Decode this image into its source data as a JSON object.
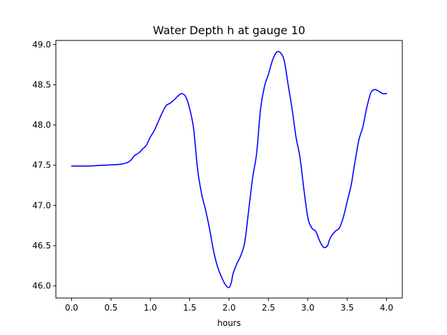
{
  "chart_data": {
    "type": "line",
    "title": "Water Depth h at gauge 10",
    "xlabel": "hours",
    "ylabel": "",
    "xlim": [
      -0.2,
      4.2
    ],
    "ylim": [
      45.85,
      49.05
    ],
    "grid": false,
    "xticks": [
      0.0,
      0.5,
      1.0,
      1.5,
      2.0,
      2.5,
      3.0,
      3.5,
      4.0
    ],
    "xtick_labels": [
      "0.0",
      "0.5",
      "1.0",
      "1.5",
      "2.0",
      "2.5",
      "3.0",
      "3.5",
      "4.0"
    ],
    "yticks": [
      46.0,
      46.5,
      47.0,
      47.5,
      48.0,
      48.5,
      49.0
    ],
    "ytick_labels": [
      "46.0",
      "46.5",
      "47.0",
      "47.5",
      "48.0",
      "48.5",
      "49.0"
    ],
    "series": [
      {
        "name": "",
        "color": "#0000ff",
        "x": [
          0.0,
          0.2,
          0.4,
          0.6,
          0.7,
          0.75,
          0.8,
          0.85,
          0.9,
          0.95,
          1.0,
          1.05,
          1.1,
          1.15,
          1.2,
          1.25,
          1.3,
          1.35,
          1.4,
          1.45,
          1.5,
          1.55,
          1.6,
          1.65,
          1.7,
          1.75,
          1.8,
          1.85,
          1.9,
          1.95,
          2.0,
          2.03,
          2.05,
          2.1,
          2.15,
          2.2,
          2.25,
          2.3,
          2.35,
          2.4,
          2.45,
          2.5,
          2.55,
          2.6,
          2.65,
          2.7,
          2.75,
          2.8,
          2.85,
          2.9,
          2.95,
          3.0,
          3.05,
          3.1,
          3.15,
          3.2,
          3.25,
          3.27,
          3.3,
          3.35,
          3.4,
          3.45,
          3.5,
          3.55,
          3.6,
          3.65,
          3.7,
          3.75,
          3.8,
          3.85,
          3.9,
          3.95,
          4.0
        ],
        "y": [
          47.49,
          47.49,
          47.5,
          47.51,
          47.53,
          47.56,
          47.62,
          47.65,
          47.7,
          47.75,
          47.85,
          47.93,
          48.04,
          48.15,
          48.24,
          48.27,
          48.31,
          48.36,
          48.39,
          48.35,
          48.2,
          47.95,
          47.45,
          47.15,
          46.95,
          46.72,
          46.45,
          46.25,
          46.12,
          46.02,
          45.98,
          46.05,
          46.15,
          46.28,
          46.38,
          46.55,
          46.95,
          47.35,
          47.65,
          48.2,
          48.48,
          48.63,
          48.8,
          48.9,
          48.9,
          48.8,
          48.5,
          48.2,
          47.85,
          47.6,
          47.2,
          46.85,
          46.72,
          46.68,
          46.56,
          46.48,
          46.5,
          46.56,
          46.62,
          46.68,
          46.72,
          46.85,
          47.05,
          47.25,
          47.55,
          47.82,
          47.98,
          48.22,
          48.4,
          48.44,
          48.42,
          48.39,
          48.39
        ]
      }
    ]
  }
}
